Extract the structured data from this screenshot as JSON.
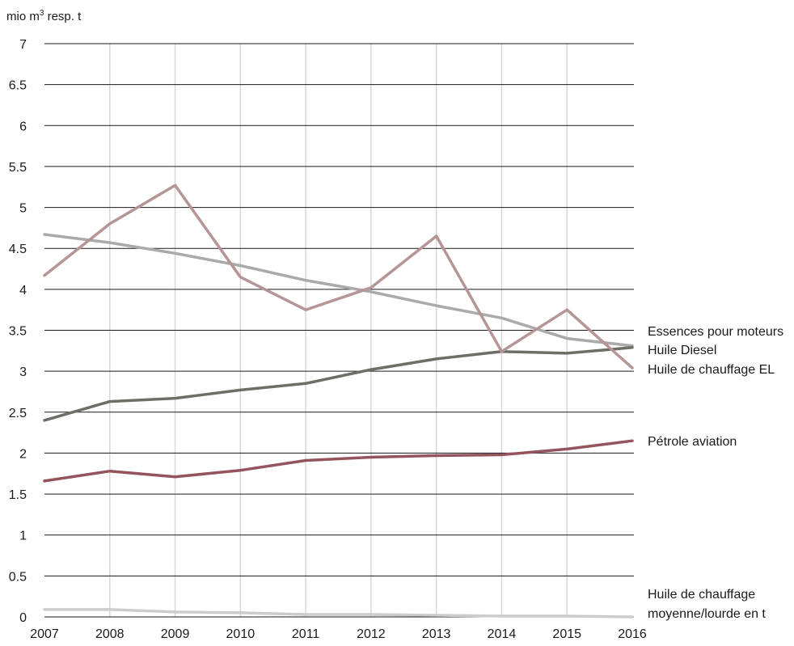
{
  "chart_data": {
    "type": "line",
    "title": "",
    "xlabel": "",
    "ylabel": "mio m³ resp. t",
    "unit_prefix": "mio m",
    "unit_sup": "3",
    "unit_suffix": " resp. t",
    "x": [
      "2007",
      "2008",
      "2009",
      "2010",
      "2011",
      "2012",
      "2013",
      "2014",
      "2015",
      "2016"
    ],
    "ylim": [
      0,
      7
    ],
    "yticks": [
      0,
      0.5,
      1,
      1.5,
      2,
      2.5,
      3,
      3.5,
      4,
      4.5,
      5,
      5.5,
      6,
      6.5,
      7
    ],
    "grid": true,
    "legend": "right",
    "series": [
      {
        "name": "Essences pour moteurs",
        "color": "#aaaaaa",
        "values": [
          4.67,
          4.57,
          4.44,
          4.29,
          4.11,
          3.97,
          3.8,
          3.65,
          3.4,
          3.31
        ]
      },
      {
        "name": "Huile Diesel",
        "color": "#6e6e67",
        "values": [
          2.4,
          2.63,
          2.67,
          2.77,
          2.85,
          3.02,
          3.15,
          3.24,
          3.22,
          3.29
        ]
      },
      {
        "name": "Huile de chauffage EL",
        "color": "#b59596",
        "values": [
          4.17,
          4.8,
          5.27,
          4.15,
          3.75,
          4.02,
          4.65,
          3.24,
          3.75,
          3.04
        ]
      },
      {
        "name": "Pétrole aviation",
        "color": "#95545c",
        "values": [
          1.66,
          1.78,
          1.71,
          1.79,
          1.91,
          1.95,
          1.97,
          1.98,
          2.05,
          2.15
        ]
      },
      {
        "name": "Huile de chauffage moyenne/lourde en t",
        "name_lines": [
          "Huile de chauffage",
          "moyenne/lourde en t"
        ],
        "color": "#cccccc",
        "values": [
          0.09,
          0.09,
          0.06,
          0.05,
          0.03,
          0.03,
          0.02,
          0.01,
          0.01,
          0.0
        ]
      }
    ]
  }
}
